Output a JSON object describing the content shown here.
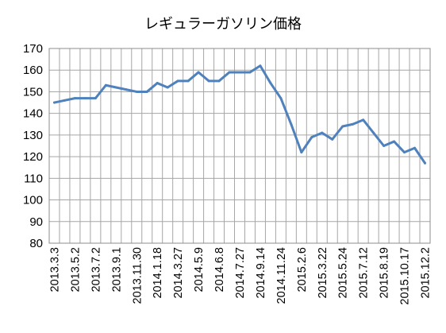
{
  "chart_data": {
    "type": "line",
    "title": "レギュラーガソリン価格",
    "xlabel": "",
    "ylabel": "",
    "ylim": [
      80,
      170
    ],
    "yticks": [
      80,
      90,
      100,
      110,
      120,
      130,
      140,
      150,
      160,
      170
    ],
    "grid": true,
    "legend": "none",
    "line_color": "#4f81bd",
    "x_tick_labels": [
      "2013.3.3",
      "2013.5.2",
      "2013.7.2",
      "2013.9.1",
      "2013.11.30",
      "2014.1.18",
      "2014.3.27",
      "2014.5.9",
      "2014.6.8",
      "2014.7.27",
      "2014.9.14",
      "2014.11.24",
      "2015.2.6",
      "2015.3.22",
      "2015.5.24",
      "2015.7.12",
      "2015.8.19",
      "2015.10.17",
      "2015.12.2"
    ],
    "values": [
      145,
      146,
      147,
      147,
      147,
      153,
      152,
      151,
      150,
      150,
      154,
      152,
      155,
      155,
      159,
      155,
      155,
      159,
      159,
      159,
      162,
      154,
      147,
      135,
      122,
      129,
      131,
      128,
      134,
      135,
      137,
      131,
      125,
      127,
      122,
      124,
      117
    ]
  }
}
